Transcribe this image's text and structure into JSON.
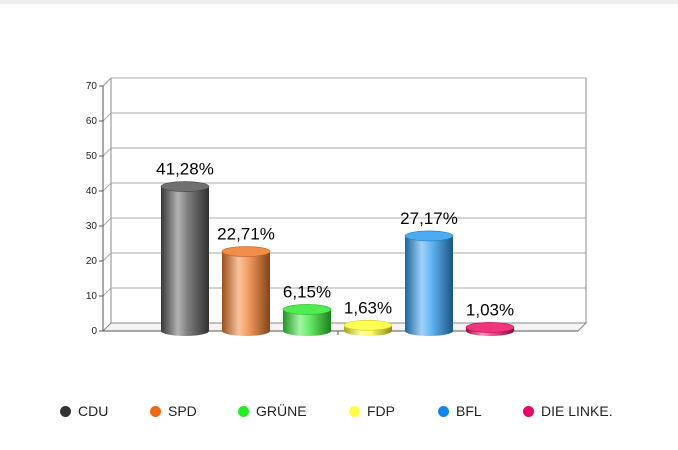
{
  "chart_data": {
    "type": "bar",
    "categories": [
      "CDU",
      "SPD",
      "GRÜNE",
      "FDP",
      "BFL",
      "DIE LINKE."
    ],
    "values": [
      41.28,
      22.71,
      6.15,
      1.63,
      27.17,
      1.03
    ],
    "data_labels": [
      "41,28%",
      "22,71%",
      "6,15%",
      "1,63%",
      "27,17%",
      "1,03%"
    ],
    "colors": [
      "#555555",
      "#f07a2a",
      "#33e633",
      "#ffff33",
      "#2e9cf0",
      "#ee1166"
    ],
    "yticks": [
      "0",
      "10",
      "20",
      "30",
      "40",
      "50",
      "60",
      "70"
    ],
    "ylim": [
      0,
      70
    ],
    "grid": true,
    "legend_position": "bottom",
    "bar_style": "3d-cylinder"
  },
  "legend": {
    "items": [
      {
        "label": "CDU",
        "color": "#333333"
      },
      {
        "label": "SPD",
        "color": "#f26a10"
      },
      {
        "label": "GRÜNE",
        "color": "#22ee22"
      },
      {
        "label": "FDP",
        "color": "#ffff44"
      },
      {
        "label": "BFL",
        "color": "#1188ee"
      },
      {
        "label": "DIE LINKE.",
        "color": "#ee0066"
      }
    ]
  }
}
